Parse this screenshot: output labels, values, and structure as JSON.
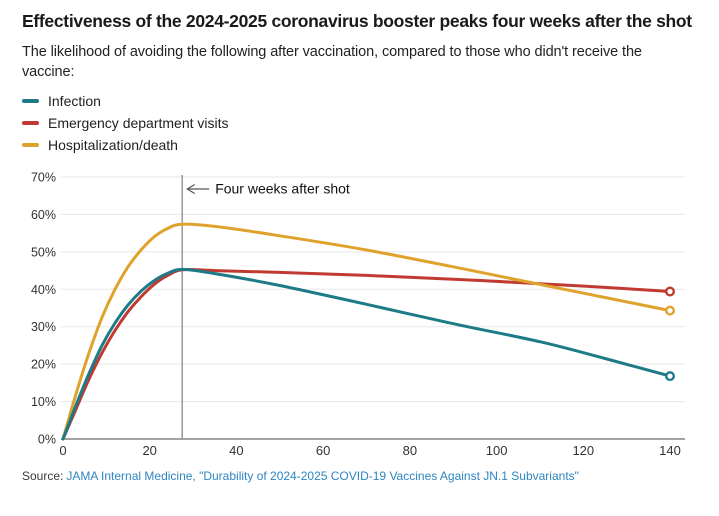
{
  "header": {
    "title": "Effectiveness of the 2024-2025 coronavirus booster peaks four weeks after the shot",
    "subtitle": "The likelihood of avoiding the following after vaccination, compared to those who didn't receive the vaccine:"
  },
  "legend": [
    {
      "label": "Infection",
      "color": "#1d7a87"
    },
    {
      "label": "Emergency department visits",
      "color": "#c13a31"
    },
    {
      "label": "Hospitalization/death",
      "color": "#dfa32d"
    }
  ],
  "source": {
    "label": "Source:",
    "link_text": "JAMA Internal Medicine, \"Durability of 2024-2025 COVID-19 Vaccines Against JN.1 Subvariants\""
  },
  "chart_data": {
    "type": "line",
    "title": "Effectiveness of the 2024-2025 coronavirus booster peaks four weeks after the shot",
    "xlabel": "",
    "ylabel": "",
    "xlim": [
      0,
      140
    ],
    "ylim": [
      0,
      70
    ],
    "x_ticks": [
      0,
      20,
      40,
      60,
      80,
      100,
      120,
      140
    ],
    "y_ticks": [
      0,
      10,
      20,
      30,
      40,
      50,
      60,
      70
    ],
    "y_tick_suffix": "%",
    "grid": true,
    "grid_color": "#e7e7e7",
    "axis_color": "#a3a3a3",
    "marker_line_color": "#8a8a8a",
    "annotation": {
      "text": "Four weeks after shot",
      "x": 27.5
    },
    "legend_position": "top-left",
    "series": [
      {
        "name": "Emergency department visits",
        "color": "#c13a31",
        "end_marker": true,
        "points": [
          [
            0,
            0
          ],
          [
            3,
            8
          ],
          [
            6,
            16
          ],
          [
            9,
            23
          ],
          [
            12,
            29
          ],
          [
            15,
            34
          ],
          [
            18,
            38
          ],
          [
            21,
            41.3
          ],
          [
            24,
            43.6
          ],
          [
            27.5,
            45.2
          ],
          [
            35,
            45
          ],
          [
            50,
            44.5
          ],
          [
            70,
            43.7
          ],
          [
            90,
            42.7
          ],
          [
            110,
            41.5
          ],
          [
            125,
            40.5
          ],
          [
            140,
            39.4
          ]
        ]
      },
      {
        "name": "Hospitalization/death",
        "color": "#dfa32d",
        "end_marker": true,
        "points": [
          [
            0,
            0
          ],
          [
            3,
            12
          ],
          [
            6,
            23
          ],
          [
            9,
            32.5
          ],
          [
            12,
            40
          ],
          [
            15,
            46
          ],
          [
            18,
            50.5
          ],
          [
            21,
            54
          ],
          [
            24,
            56.2
          ],
          [
            27.5,
            57.4
          ],
          [
            35,
            56.8
          ],
          [
            50,
            54.3
          ],
          [
            70,
            50.5
          ],
          [
            90,
            46
          ],
          [
            110,
            41.3
          ],
          [
            125,
            37.8
          ],
          [
            140,
            34.3
          ]
        ]
      },
      {
        "name": "Infection",
        "color": "#1d7a87",
        "end_marker": true,
        "points": [
          [
            0,
            0
          ],
          [
            3,
            9
          ],
          [
            6,
            17.5
          ],
          [
            9,
            25
          ],
          [
            12,
            31
          ],
          [
            15,
            35.8
          ],
          [
            18,
            39.5
          ],
          [
            21,
            42.3
          ],
          [
            24,
            44.2
          ],
          [
            27.5,
            45.3
          ],
          [
            35,
            44.2
          ],
          [
            50,
            41
          ],
          [
            70,
            36
          ],
          [
            90,
            30.8
          ],
          [
            110,
            26
          ],
          [
            125,
            21.5
          ],
          [
            140,
            16.8
          ]
        ]
      }
    ]
  }
}
